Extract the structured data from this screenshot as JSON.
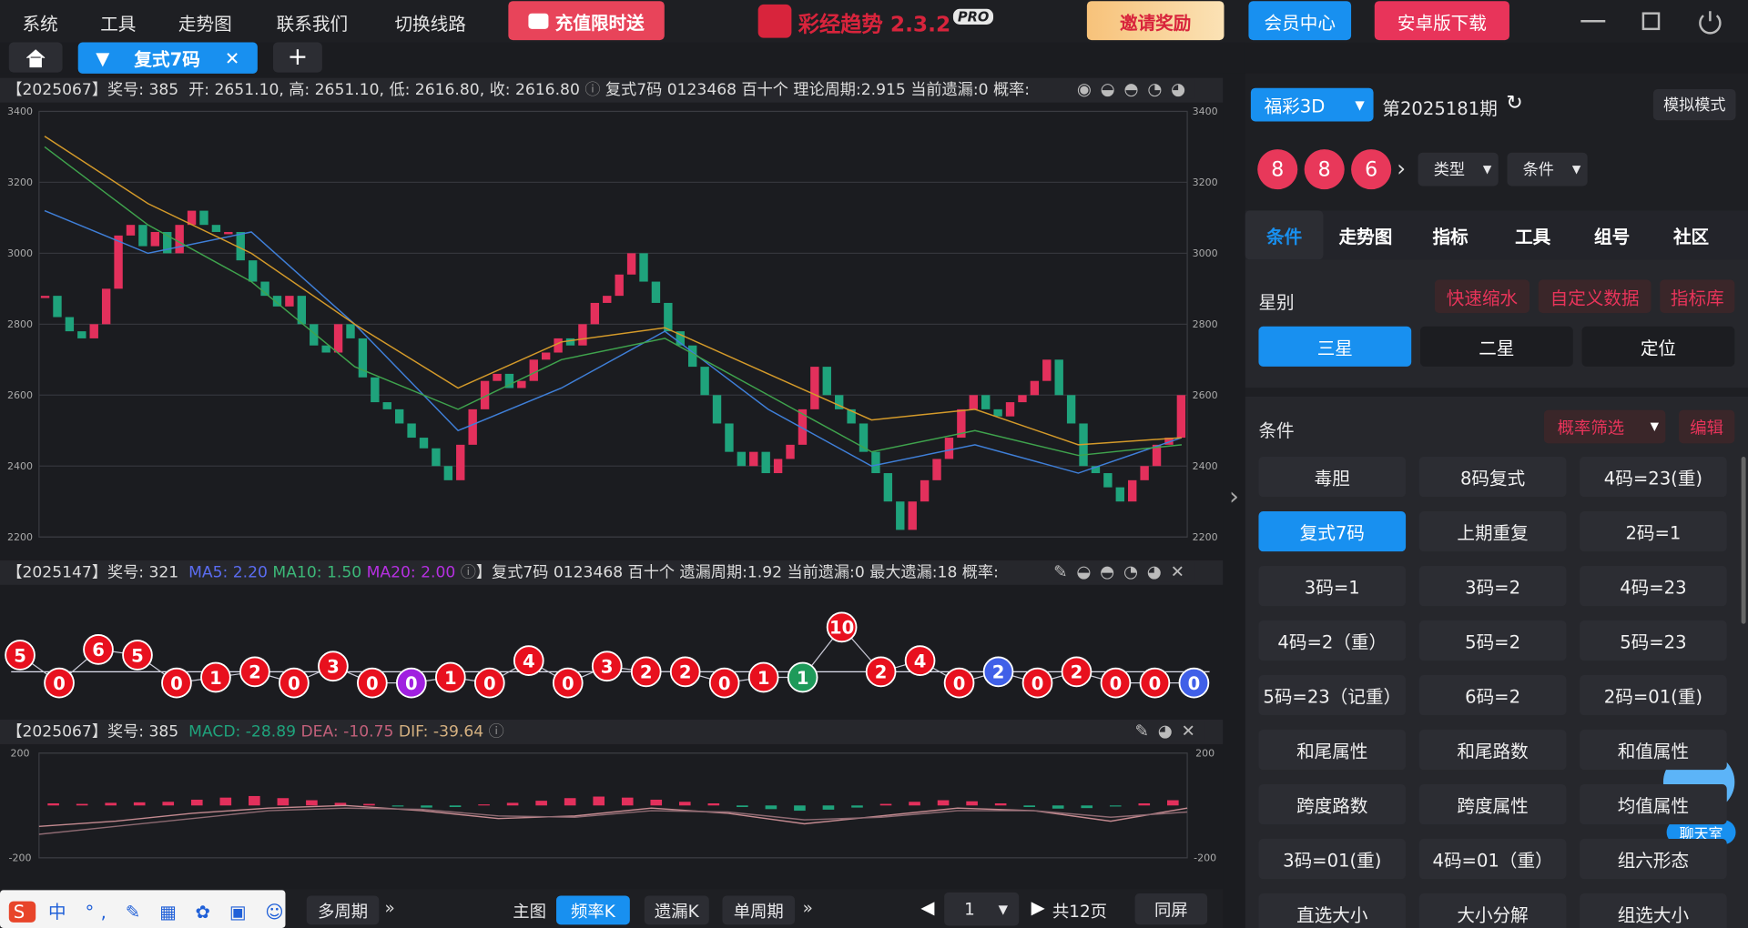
{
  "menu": [
    "系统",
    "工具",
    "走势图",
    "联系我们",
    "切换线路"
  ],
  "promo": "充值限时送",
  "app_title": "彩经趋势 2.3.2",
  "app_badge": "PRO",
  "invite": "邀请奖励",
  "member": "会员中心",
  "android": "安卓版下载",
  "tab": "复式7码",
  "candle_info": {
    "head": "【2025067】奖号: 385",
    "ohlc": "开: 2651.10, 高: 2651.10, 低: 2616.80, 收: 2616.80",
    "rest": "复式7码  0123468  百十个  理论周期:2.915  当前遗漏:0  概率:"
  },
  "omit_info": {
    "head": "【2025147】奖号: 321",
    "ma5": "MA5: 2.20",
    "ma10": "MA10: 1.50",
    "ma20": "MA20: 2.00",
    "rest": "】复式7码  0123468  百十个  遗漏周期:1.92  当前遗漏:0  最大遗漏:18  概率:"
  },
  "macd_info": {
    "head": "【2025067】奖号: 385",
    "macd": "MACD: -28.89",
    "dea": "DEA: -10.75",
    "dif": "DIF: -39.64"
  },
  "chart_data": [
    {
      "type": "candlestick",
      "closes": [
        2880,
        2820,
        2780,
        2760,
        2800,
        2900,
        3050,
        3080,
        3020,
        3060,
        3000,
        3080,
        3120,
        3080,
        3060,
        3060,
        2980,
        2920,
        2880,
        2850,
        2880,
        2800,
        2740,
        2720,
        2800,
        2760,
        2650,
        2580,
        2560,
        2520,
        2480,
        2450,
        2400,
        2360,
        2460,
        2560,
        2640,
        2660,
        2620,
        2640,
        2700,
        2720,
        2760,
        2740,
        2800,
        2860,
        2880,
        2940,
        3000,
        2920,
        2860,
        2780,
        2740,
        2680,
        2600,
        2520,
        2440,
        2400,
        2440,
        2380,
        2420,
        2460,
        2560,
        2680,
        2600,
        2560,
        2520,
        2440,
        2380,
        2300,
        2220,
        2300,
        2360,
        2420,
        2480,
        2560,
        2600,
        2560,
        2540,
        2580,
        2600,
        2640,
        2700,
        2600,
        2520,
        2400,
        2380,
        2340,
        2300,
        2360,
        2400,
        2460,
        2480,
        2600
      ],
      "up_color": "#e3305c",
      "down_color": "#1fa37c",
      "ma_lines": [
        {
          "color": "#3f7fd8",
          "values": [
            3120,
            3000,
            3060,
            2800,
            2500,
            2620,
            2780,
            2560,
            2400,
            2460,
            2380,
            2480
          ]
        },
        {
          "color": "#3fa34d",
          "values": [
            3300,
            3080,
            2920,
            2680,
            2560,
            2700,
            2760,
            2600,
            2440,
            2500,
            2430,
            2460
          ]
        },
        {
          "color": "#d49a2a",
          "values": [
            3330,
            3140,
            3000,
            2800,
            2620,
            2750,
            2790,
            2660,
            2530,
            2560,
            2460,
            2480
          ]
        }
      ],
      "ylim": [
        2200,
        3400
      ],
      "yticks": [
        2200,
        2400,
        2600,
        2800,
        3000,
        3200,
        3400
      ],
      "grid": true
    },
    {
      "type": "line",
      "values": [
        5,
        0,
        6,
        5,
        0,
        1,
        2,
        0,
        3,
        0,
        0,
        1,
        0,
        4,
        0,
        3,
        2,
        2,
        0,
        1,
        1,
        10,
        2,
        4,
        0,
        2,
        0,
        2,
        0,
        0,
        0
      ],
      "colors": [
        "#e8101e",
        "#e8101e",
        "#e8101e",
        "#e8101e",
        "#e8101e",
        "#e8101e",
        "#e8101e",
        "#e8101e",
        "#e8101e",
        "#e8101e",
        "#a020e0",
        "#e8101e",
        "#e8101e",
        "#e8101e",
        "#e8101e",
        "#e8101e",
        "#e8101e",
        "#e8101e",
        "#e8101e",
        "#e8101e",
        "#1e9a5a",
        "#e8101e",
        "#e8101e",
        "#e8101e",
        "#e8101e",
        "#4060e8",
        "#e8101e",
        "#e8101e",
        "#e8101e",
        "#e8101e",
        "#4060e8"
      ],
      "line_color": "#c9c9d6"
    },
    {
      "type": "bar",
      "values": [
        8,
        6,
        10,
        12,
        14,
        22,
        30,
        36,
        28,
        20,
        10,
        6,
        -4,
        -8,
        -6,
        4,
        10,
        18,
        28,
        34,
        30,
        22,
        14,
        8,
        -6,
        -14,
        -20,
        -16,
        -8,
        6,
        14,
        20,
        16,
        8,
        -6,
        -12,
        -10,
        -4,
        8,
        20
      ],
      "up_color": "#e3305c",
      "down_color": "#1fa37c",
      "lines": [
        {
          "color": "#c48a90",
          "values": [
            -80,
            -60,
            -30,
            -10,
            0,
            -20,
            -50,
            -40,
            -10,
            -30,
            -70,
            -40,
            -10,
            -20,
            -60,
            -10
          ]
        },
        {
          "color": "#8e6a72",
          "values": [
            -110,
            -80,
            -50,
            -20,
            -10,
            -15,
            -40,
            -45,
            -20,
            -25,
            -55,
            -45,
            -20,
            -20,
            -45,
            -25
          ]
        }
      ],
      "ylim": [
        -200,
        200
      ],
      "yticks": [
        200,
        -200
      ],
      "grid": true
    }
  ],
  "bottom": {
    "multi": "多周期",
    "main": "主图",
    "freq": "频率K",
    "omit": "遗漏K",
    "single": "单周期",
    "page": 1,
    "total": "共12页",
    "same": "同屏"
  },
  "panel": {
    "lottery": "福彩3D",
    "issue": "第2025181期",
    "sim": "模拟模式",
    "balls": [
      8,
      8,
      6
    ],
    "type": "类型",
    "cond": "条件",
    "tabs": [
      "条件",
      "走势图",
      "指标",
      "工具",
      "组号",
      "社区"
    ],
    "star_label": "星别",
    "star_tools": [
      "快速缩水",
      "自定义数据",
      "指标库"
    ],
    "stars": [
      "三星",
      "二星",
      "定位"
    ],
    "cond_label": "条件",
    "filter": "概率筛选",
    "edit": "编辑",
    "conditions": [
      [
        "毒胆",
        "8码复式",
        "4码=23(重)"
      ],
      [
        "复式7码",
        "上期重复",
        "2码=1"
      ],
      [
        "3码=1",
        "3码=2",
        "4码=23"
      ],
      [
        "4码=2（重）",
        "5码=2",
        "5码=23"
      ],
      [
        "5码=23（记重）",
        "6码=2",
        "2码=01(重)"
      ],
      [
        "和尾属性",
        "和尾路数",
        "和值属性"
      ],
      [
        "跨度路数",
        "跨度属性",
        "均值属性"
      ],
      [
        "3码=01(重)",
        "4码=01（重）",
        "组六形态"
      ],
      [
        "直选大小",
        "大小分解",
        "组选大小"
      ]
    ],
    "chat": "聊天室"
  }
}
